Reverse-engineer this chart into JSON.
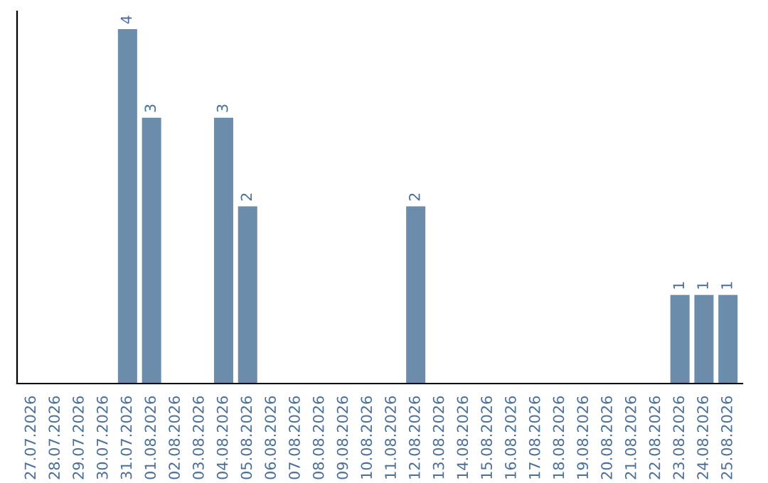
{
  "chart_data": {
    "type": "bar",
    "categories": [
      "27.07.2026",
      "28.07.2026",
      "29.07.2026",
      "30.07.2026",
      "31.07.2026",
      "01.08.2026",
      "02.08.2026",
      "03.08.2026",
      "04.08.2026",
      "05.08.2026",
      "06.08.2026",
      "07.08.2026",
      "08.08.2026",
      "09.08.2026",
      "10.08.2026",
      "11.08.2026",
      "12.08.2026",
      "13.08.2026",
      "14.08.2026",
      "15.08.2026",
      "16.08.2026",
      "17.08.2026",
      "18.08.2026",
      "19.08.2026",
      "20.08.2026",
      "21.08.2026",
      "22.08.2026",
      "23.08.2026",
      "24.08.2026",
      "25.08.2026"
    ],
    "values": [
      null,
      null,
      null,
      null,
      4,
      3,
      null,
      null,
      3,
      2,
      null,
      null,
      null,
      null,
      null,
      null,
      2,
      null,
      null,
      null,
      null,
      null,
      null,
      null,
      null,
      null,
      null,
      1,
      1,
      1
    ],
    "color": "#6b8cab",
    "data_labels": true,
    "grid": false,
    "legend": false
  }
}
